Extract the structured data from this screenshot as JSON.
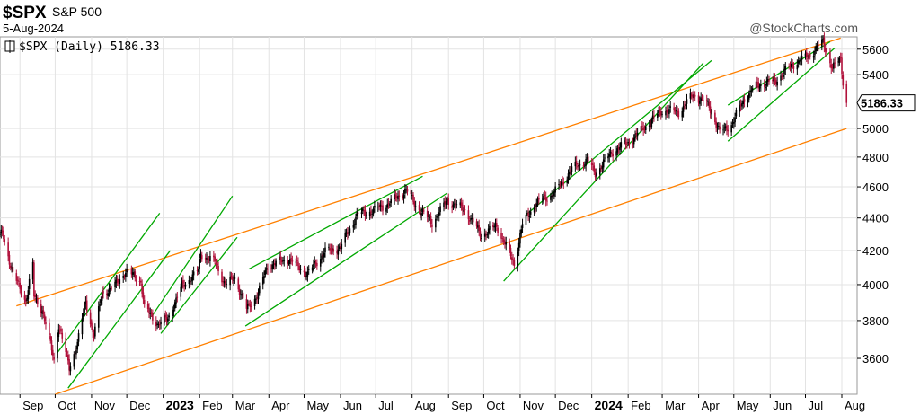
{
  "header": {
    "symbol": "$SPX",
    "name": "S&P 500",
    "date": "5-Aug-2024",
    "watermark": "@StockCharts.com",
    "legend": "$SPX (Daily) 5186.33"
  },
  "chart_data": {
    "type": "candlestick",
    "title": "$SPX",
    "subtitle": "S&P 500",
    "ylim": [
      3420,
      5700
    ],
    "y_ticks": [
      3600,
      3800,
      4000,
      4200,
      4400,
      4600,
      4800,
      5000,
      5200,
      5400,
      5600
    ],
    "y_tick_labels": [
      "3600",
      "3800",
      "4000",
      "4200",
      "4400",
      "4600",
      "4800",
      "5000",
      "5200",
      "5400",
      "5600"
    ],
    "last_value": 5186.33,
    "last_value_label": "5186.33",
    "grid": true,
    "x_axis": [
      {
        "label": "Sep",
        "date": "2022-09-01",
        "bold": false
      },
      {
        "label": "Oct",
        "date": "2022-10-01",
        "bold": false
      },
      {
        "label": "Nov",
        "date": "2022-11-01",
        "bold": false
      },
      {
        "label": "Dec",
        "date": "2022-12-01",
        "bold": false
      },
      {
        "label": "2023",
        "date": "2023-01-01",
        "bold": true
      },
      {
        "label": "Feb",
        "date": "2023-02-01",
        "bold": false
      },
      {
        "label": "Mar",
        "date": "2023-03-01",
        "bold": false
      },
      {
        "label": "Apr",
        "date": "2023-04-01",
        "bold": false
      },
      {
        "label": "May",
        "date": "2023-05-01",
        "bold": false
      },
      {
        "label": "Jun",
        "date": "2023-06-01",
        "bold": false
      },
      {
        "label": "Jul",
        "date": "2023-07-01",
        "bold": false
      },
      {
        "label": "Aug",
        "date": "2023-08-01",
        "bold": false
      },
      {
        "label": "Sep",
        "date": "2023-09-01",
        "bold": false
      },
      {
        "label": "Oct",
        "date": "2023-10-01",
        "bold": false
      },
      {
        "label": "Nov",
        "date": "2023-11-01",
        "bold": false
      },
      {
        "label": "Dec",
        "date": "2023-12-01",
        "bold": false
      },
      {
        "label": "2024",
        "date": "2024-01-01",
        "bold": true
      },
      {
        "label": "Feb",
        "date": "2024-02-01",
        "bold": false
      },
      {
        "label": "Mar",
        "date": "2024-03-01",
        "bold": false
      },
      {
        "label": "Apr",
        "date": "2024-04-01",
        "bold": false
      },
      {
        "label": "May",
        "date": "2024-05-01",
        "bold": false
      },
      {
        "label": "Jun",
        "date": "2024-06-01",
        "bold": false
      },
      {
        "label": "Jul",
        "date": "2024-07-01",
        "bold": false
      },
      {
        "label": "Aug",
        "date": "2024-08-01",
        "bold": false
      }
    ],
    "price_path": [
      [
        "2022-08-15",
        4280
      ],
      [
        "2022-08-17",
        4310
      ],
      [
        "2022-08-26",
        4060
      ],
      [
        "2022-09-06",
        3910
      ],
      [
        "2022-09-12",
        4110
      ],
      [
        "2022-09-13",
        3930
      ],
      [
        "2022-09-20",
        3860
      ],
      [
        "2022-09-30",
        3590
      ],
      [
        "2022-10-04",
        3780
      ],
      [
        "2022-10-13",
        3550
      ],
      [
        "2022-10-20",
        3680
      ],
      [
        "2022-10-27",
        3900
      ],
      [
        "2022-11-03",
        3720
      ],
      [
        "2022-11-10",
        3950
      ],
      [
        "2022-11-22",
        4000
      ],
      [
        "2022-11-30",
        4080
      ],
      [
        "2022-12-13",
        4020
      ],
      [
        "2022-12-16",
        3870
      ],
      [
        "2022-12-28",
        3780
      ],
      [
        "2023-01-05",
        3810
      ],
      [
        "2023-01-17",
        3990
      ],
      [
        "2023-01-31",
        4080
      ],
      [
        "2023-02-02",
        4180
      ],
      [
        "2023-02-14",
        4130
      ],
      [
        "2023-02-23",
        4000
      ],
      [
        "2023-03-03",
        4040
      ],
      [
        "2023-03-13",
        3860
      ],
      [
        "2023-03-23",
        3950
      ],
      [
        "2023-03-31",
        4110
      ],
      [
        "2023-04-18",
        4150
      ],
      [
        "2023-05-04",
        4060
      ],
      [
        "2023-05-18",
        4190
      ],
      [
        "2023-06-01",
        4220
      ],
      [
        "2023-06-15",
        4420
      ],
      [
        "2023-06-30",
        4450
      ],
      [
        "2023-07-14",
        4500
      ],
      [
        "2023-07-27",
        4580
      ],
      [
        "2023-08-04",
        4480
      ],
      [
        "2023-08-18",
        4370
      ],
      [
        "2023-08-31",
        4510
      ],
      [
        "2023-09-15",
        4450
      ],
      [
        "2023-09-29",
        4290
      ],
      [
        "2023-10-12",
        4350
      ],
      [
        "2023-10-27",
        4120
      ],
      [
        "2023-11-03",
        4360
      ],
      [
        "2023-11-14",
        4490
      ],
      [
        "2023-11-30",
        4560
      ],
      [
        "2023-12-15",
        4720
      ],
      [
        "2023-12-28",
        4780
      ],
      [
        "2024-01-04",
        4690
      ],
      [
        "2024-01-19",
        4840
      ],
      [
        "2024-02-01",
        4900
      ],
      [
        "2024-02-15",
        5010
      ],
      [
        "2024-03-01",
        5130
      ],
      [
        "2024-03-15",
        5120
      ],
      [
        "2024-03-28",
        5250
      ],
      [
        "2024-04-10",
        5160
      ],
      [
        "2024-04-19",
        4970
      ],
      [
        "2024-04-30",
        5040
      ],
      [
        "2024-05-10",
        5220
      ],
      [
        "2024-05-21",
        5320
      ],
      [
        "2024-06-05",
        5350
      ],
      [
        "2024-06-20",
        5480
      ],
      [
        "2024-07-03",
        5540
      ],
      [
        "2024-07-16",
        5660
      ],
      [
        "2024-07-24",
        5450
      ],
      [
        "2024-07-31",
        5520
      ],
      [
        "2024-08-02",
        5350
      ],
      [
        "2024-08-05",
        5186.33
      ]
    ],
    "trendlines": [
      {
        "color": "#ff8000",
        "from": [
          "2022-08-29",
          3880
        ],
        "to": [
          "2024-07-31",
          5690
        ]
      },
      {
        "color": "#ff8000",
        "from": [
          "2022-10-01",
          3420
        ],
        "to": [
          "2024-08-05",
          5000
        ]
      },
      {
        "color": "#00a800",
        "from": [
          "2022-10-03",
          3630
        ],
        "to": [
          "2022-12-29",
          4430
        ]
      },
      {
        "color": "#00a800",
        "from": [
          "2022-10-12",
          3450
        ],
        "to": [
          "2023-01-07",
          4200
        ]
      },
      {
        "color": "#00a800",
        "from": [
          "2022-12-22",
          3820
        ],
        "to": [
          "2023-03-01",
          4540
        ]
      },
      {
        "color": "#00a800",
        "from": [
          "2022-12-30",
          3730
        ],
        "to": [
          "2023-03-05",
          4280
        ]
      },
      {
        "color": "#00a800",
        "from": [
          "2023-03-15",
          4090
        ],
        "to": [
          "2023-08-10",
          4670
        ]
      },
      {
        "color": "#00a800",
        "from": [
          "2023-03-12",
          3770
        ],
        "to": [
          "2023-08-31",
          4560
        ]
      },
      {
        "color": "#00a800",
        "from": [
          "2023-10-18",
          4020
        ],
        "to": [
          "2024-04-05",
          5490
        ]
      },
      {
        "color": "#00a800",
        "from": [
          "2023-11-06",
          4420
        ],
        "to": [
          "2024-04-12",
          5510
        ]
      },
      {
        "color": "#00a800",
        "from": [
          "2024-04-26",
          5170
        ],
        "to": [
          "2024-07-22",
          5660
        ]
      },
      {
        "color": "#00a800",
        "from": [
          "2024-04-26",
          4910
        ],
        "to": [
          "2024-07-26",
          5610
        ]
      }
    ]
  }
}
